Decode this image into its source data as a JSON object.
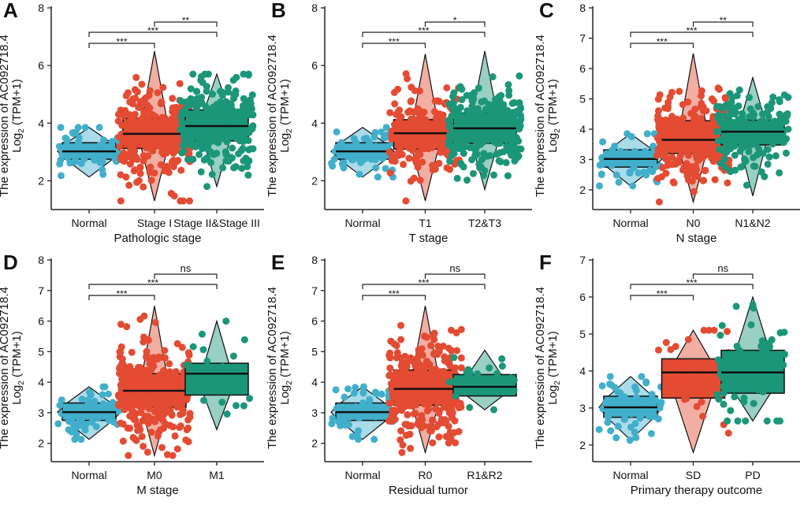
{
  "colors": {
    "normal": "#41afcb",
    "group2": "#e34b33",
    "group3": "#1b9679"
  },
  "chart_data": [
    {
      "panel": "A",
      "type": "box-violin",
      "xlabel": "Pathologic stage",
      "ylabel_line1": "The expression of AC092718.4",
      "ylabel_line2": "Log2 (TPM+1)",
      "ylim": [
        1,
        8
      ],
      "yticks": [
        2,
        4,
        6,
        8
      ],
      "categories": [
        "Normal",
        "Stage I",
        "Stage II&Stage III"
      ],
      "groups": [
        {
          "min": 2.13,
          "q1": 2.75,
          "median": 3.02,
          "q3": 3.32,
          "max": 3.85
        },
        {
          "min": 1.3,
          "q1": 3.12,
          "median": 3.63,
          "q3": 4.17,
          "max": 6.5
        },
        {
          "min": 1.8,
          "q1": 3.38,
          "median": 3.9,
          "q3": 4.46,
          "max": 5.7
        }
      ],
      "significance": [
        {
          "pair": [
            "Normal",
            "Stage I"
          ],
          "label": "***"
        },
        {
          "pair": [
            "Normal",
            "Stage II&Stage III"
          ],
          "label": "***"
        },
        {
          "pair": [
            "Stage I",
            "Stage II&Stage III"
          ],
          "label": "**"
        }
      ]
    },
    {
      "panel": "B",
      "type": "box-violin",
      "xlabel": "T stage",
      "ylabel_line1": "The expression of AC092718.4",
      "ylabel_line2": "Log2 (TPM+1)",
      "ylim": [
        1,
        8
      ],
      "yticks": [
        2,
        4,
        6,
        8
      ],
      "categories": [
        "Normal",
        "T1",
        "T2&T3"
      ],
      "groups": [
        {
          "min": 2.13,
          "q1": 2.75,
          "median": 3.02,
          "q3": 3.32,
          "max": 3.85
        },
        {
          "min": 1.3,
          "q1": 3.1,
          "median": 3.65,
          "q3": 4.12,
          "max": 6.4
        },
        {
          "min": 1.7,
          "q1": 3.3,
          "median": 3.82,
          "q3": 4.35,
          "max": 6.5
        }
      ],
      "significance": [
        {
          "pair": [
            "Normal",
            "T1"
          ],
          "label": "***"
        },
        {
          "pair": [
            "Normal",
            "T2&T3"
          ],
          "label": "***"
        },
        {
          "pair": [
            "T1",
            "T2&T3"
          ],
          "label": "*"
        }
      ]
    },
    {
      "panel": "C",
      "type": "box-violin",
      "xlabel": "N stage",
      "ylabel_line1": "The expression of AC092718.4",
      "ylabel_line2": "Log2 (TPM+1)",
      "ylim": [
        1.35,
        8
      ],
      "yticks": [
        2,
        3,
        4,
        5,
        6,
        7,
        8
      ],
      "categories": [
        "Normal",
        "N0",
        "N1&N2"
      ],
      "groups": [
        {
          "min": 2.13,
          "q1": 2.75,
          "median": 3.02,
          "q3": 3.32,
          "max": 3.85
        },
        {
          "min": 1.6,
          "q1": 3.2,
          "median": 3.65,
          "q3": 4.28,
          "max": 6.5
        },
        {
          "min": 1.8,
          "q1": 3.48,
          "median": 3.92,
          "q3": 4.3,
          "max": 5.7
        }
      ],
      "significance": [
        {
          "pair": [
            "Normal",
            "N0"
          ],
          "label": "***"
        },
        {
          "pair": [
            "Normal",
            "N1&N2"
          ],
          "label": "***"
        },
        {
          "pair": [
            "N0",
            "N1&N2"
          ],
          "label": "**"
        }
      ]
    },
    {
      "panel": "D",
      "type": "box-violin",
      "xlabel": "M stage",
      "ylabel_line1": "The expression of AC092718.4",
      "ylabel_line2": "Log2 (TPM+1)",
      "ylim": [
        1.4,
        8
      ],
      "yticks": [
        2,
        3,
        4,
        5,
        6,
        7,
        8
      ],
      "categories": [
        "Normal",
        "M0",
        "M1"
      ],
      "groups": [
        {
          "min": 2.13,
          "q1": 2.75,
          "median": 3.02,
          "q3": 3.32,
          "max": 3.85
        },
        {
          "min": 1.6,
          "q1": 3.18,
          "median": 3.72,
          "q3": 4.28,
          "max": 6.5
        },
        {
          "min": 2.45,
          "q1": 3.58,
          "median": 4.28,
          "q3": 4.62,
          "max": 6.0
        }
      ],
      "significance": [
        {
          "pair": [
            "Normal",
            "M0"
          ],
          "label": "***"
        },
        {
          "pair": [
            "Normal",
            "M1"
          ],
          "label": "***"
        },
        {
          "pair": [
            "M0",
            "M1"
          ],
          "label": "ns"
        }
      ]
    },
    {
      "panel": "E",
      "type": "box-violin",
      "xlabel": "Residual tumor",
      "ylabel_line1": "The expression of AC092718.4",
      "ylabel_line2": "Log2 (TPM+1)",
      "ylim": [
        1.4,
        8
      ],
      "yticks": [
        2,
        3,
        4,
        5,
        6,
        7,
        8
      ],
      "categories": [
        "Normal",
        "R0",
        "R1&R2"
      ],
      "groups": [
        {
          "min": 2.13,
          "q1": 2.75,
          "median": 3.02,
          "q3": 3.32,
          "max": 3.85
        },
        {
          "min": 1.7,
          "q1": 3.25,
          "median": 3.78,
          "q3": 4.4,
          "max": 6.5
        },
        {
          "min": 3.1,
          "q1": 3.55,
          "median": 3.85,
          "q3": 4.25,
          "max": 5.05
        }
      ],
      "significance": [
        {
          "pair": [
            "Normal",
            "R0"
          ],
          "label": "***"
        },
        {
          "pair": [
            "Normal",
            "R1&R2"
          ],
          "label": "***"
        },
        {
          "pair": [
            "R0",
            "R1&R2"
          ],
          "label": "ns"
        }
      ]
    },
    {
      "panel": "F",
      "type": "box-violin",
      "xlabel": "Primary therapy outcome",
      "ylabel_line1": "The expression of AC092718.4",
      "ylabel_line2": "Log2 (TPM+1)",
      "ylim": [
        1.55,
        7
      ],
      "yticks": [
        2,
        3,
        4,
        5,
        6,
        7
      ],
      "categories": [
        "Normal",
        "SD",
        "PD"
      ],
      "groups": [
        {
          "min": 2.13,
          "q1": 2.75,
          "median": 3.02,
          "q3": 3.32,
          "max": 3.85
        },
        {
          "min": 1.8,
          "q1": 3.27,
          "median": 3.96,
          "q3": 4.33,
          "max": 5.1
        },
        {
          "min": 2.65,
          "q1": 3.4,
          "median": 3.96,
          "q3": 4.56,
          "max": 6.0
        }
      ],
      "significance": [
        {
          "pair": [
            "Normal",
            "SD"
          ],
          "label": "***"
        },
        {
          "pair": [
            "Normal",
            "PD"
          ],
          "label": "***"
        },
        {
          "pair": [
            "SD",
            "PD"
          ],
          "label": "ns"
        }
      ]
    }
  ]
}
